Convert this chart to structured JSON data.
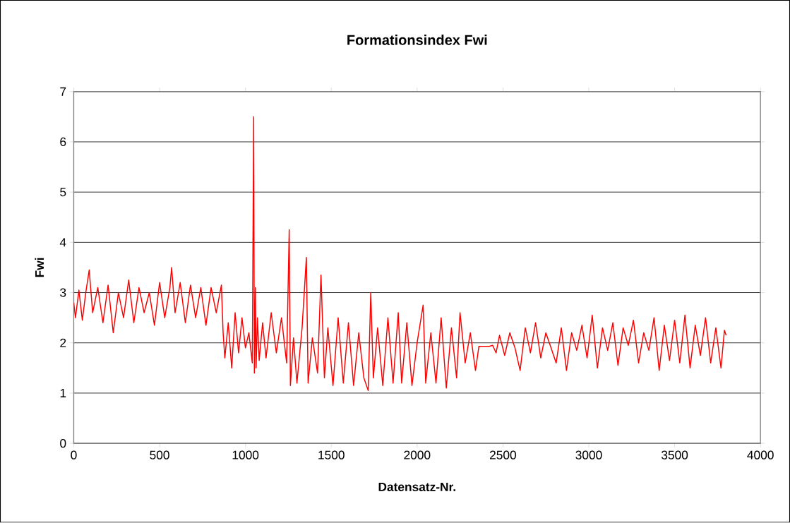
{
  "chart_data": {
    "type": "line",
    "title": "Formationsindex Fwi",
    "xlabel": "Datensatz-Nr.",
    "ylabel": "Fwi",
    "xlim": [
      0,
      4000
    ],
    "xticks": [
      0,
      500,
      1000,
      1500,
      2000,
      2500,
      3000,
      3500,
      4000
    ],
    "ylim": [
      0,
      7
    ],
    "yticks": [
      0,
      1,
      2,
      3,
      4,
      5,
      6,
      7
    ],
    "grid": "y",
    "marker": "none",
    "series": [
      {
        "color": "#ff0000",
        "x": [
          0,
          10,
          30,
          50,
          70,
          90,
          110,
          140,
          170,
          200,
          230,
          260,
          290,
          320,
          350,
          380,
          410,
          440,
          470,
          500,
          530,
          560,
          570,
          590,
          620,
          650,
          680,
          710,
          740,
          770,
          800,
          830,
          860,
          870,
          880,
          900,
          920,
          940,
          960,
          980,
          1000,
          1020,
          1040,
          1048,
          1052,
          1058,
          1062,
          1070,
          1080,
          1100,
          1120,
          1150,
          1180,
          1210,
          1240,
          1255,
          1262,
          1280,
          1300,
          1330,
          1355,
          1365,
          1390,
          1420,
          1440,
          1460,
          1480,
          1510,
          1540,
          1570,
          1600,
          1630,
          1660,
          1690,
          1715,
          1730,
          1745,
          1770,
          1800,
          1830,
          1860,
          1890,
          1910,
          1940,
          1970,
          2000,
          2035,
          2050,
          2080,
          2110,
          2140,
          2170,
          2200,
          2230,
          2250,
          2280,
          2310,
          2340,
          2360,
          2420,
          2440,
          2460,
          2480,
          2510,
          2540,
          2570,
          2600,
          2630,
          2660,
          2690,
          2720,
          2750,
          2780,
          2810,
          2840,
          2870,
          2900,
          2930,
          2960,
          2990,
          3020,
          3050,
          3080,
          3110,
          3140,
          3170,
          3200,
          3230,
          3260,
          3290,
          3320,
          3350,
          3380,
          3410,
          3440,
          3470,
          3500,
          3530,
          3560,
          3590,
          3620,
          3650,
          3680,
          3710,
          3740,
          3770,
          3790,
          3800
        ],
        "values": [
          2.8,
          2.5,
          3.05,
          2.45,
          3.0,
          3.45,
          2.6,
          3.1,
          2.4,
          3.15,
          2.2,
          3.0,
          2.5,
          3.25,
          2.4,
          3.1,
          2.6,
          3.0,
          2.35,
          3.2,
          2.5,
          3.1,
          3.5,
          2.6,
          3.2,
          2.4,
          3.15,
          2.5,
          3.1,
          2.35,
          3.1,
          2.6,
          3.15,
          2.2,
          1.7,
          2.4,
          1.5,
          2.6,
          1.8,
          2.5,
          1.9,
          2.2,
          1.6,
          6.5,
          1.4,
          3.1,
          1.5,
          2.5,
          1.65,
          2.4,
          1.7,
          2.6,
          1.8,
          2.5,
          1.6,
          4.25,
          1.15,
          2.1,
          1.2,
          2.3,
          3.7,
          1.2,
          2.1,
          1.4,
          3.35,
          1.3,
          2.3,
          1.15,
          2.5,
          1.2,
          2.4,
          1.15,
          2.2,
          1.3,
          1.05,
          3.0,
          1.3,
          2.3,
          1.15,
          2.5,
          1.2,
          2.6,
          1.2,
          2.4,
          1.15,
          2.0,
          2.75,
          1.2,
          2.2,
          1.2,
          2.5,
          1.1,
          2.3,
          1.3,
          2.6,
          1.6,
          2.2,
          1.45,
          1.93,
          1.93,
          1.95,
          1.8,
          2.15,
          1.75,
          2.2,
          1.9,
          1.45,
          2.3,
          1.8,
          2.4,
          1.7,
          2.2,
          1.9,
          1.6,
          2.3,
          1.45,
          2.2,
          1.85,
          2.35,
          1.7,
          2.55,
          1.5,
          2.3,
          1.85,
          2.4,
          1.55,
          2.3,
          1.95,
          2.45,
          1.6,
          2.2,
          1.85,
          2.5,
          1.45,
          2.35,
          1.65,
          2.45,
          1.6,
          2.55,
          1.5,
          2.35,
          1.75,
          2.5,
          1.6,
          2.3,
          1.5,
          2.25,
          2.15
        ]
      }
    ]
  }
}
